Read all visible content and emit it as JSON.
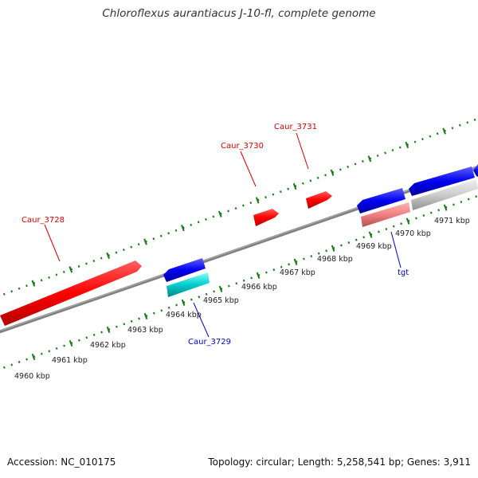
{
  "title": "Chloroflexus aurantiacus J-10-fl, complete genome",
  "footer": {
    "accession": "Accession: NC_010175",
    "topology": "Topology: circular; Length: 5,258,541 bp; Genes: 3,911"
  },
  "position_labels": [
    "4960 kbp",
    "4961 kbp",
    "4962 kbp",
    "4963 kbp",
    "4964 kbp",
    "4965 kbp",
    "4966 kbp",
    "4967 kbp",
    "4968 kbp",
    "4969 kbp",
    "4970 kbp",
    "4971 kbp"
  ],
  "gene_labels": [
    {
      "text": "Caur_3728",
      "color": "#d40000"
    },
    {
      "text": "Caur_3730",
      "color": "#d40000"
    },
    {
      "text": "Caur_3731",
      "color": "#d40000"
    },
    {
      "text": "Caur_3729",
      "color": "#0000c8"
    },
    {
      "text": "tgt",
      "color": "#0000c8"
    }
  ],
  "colors": {
    "forward_gene": "#ff0000",
    "reverse_gene": "#0000ee",
    "rna_gene": "#00c8c8",
    "pseudo_gene": "#f08080",
    "other_gene": "#c0c0c0",
    "backbone": "#777777",
    "ticks": "#1a7a1a"
  }
}
